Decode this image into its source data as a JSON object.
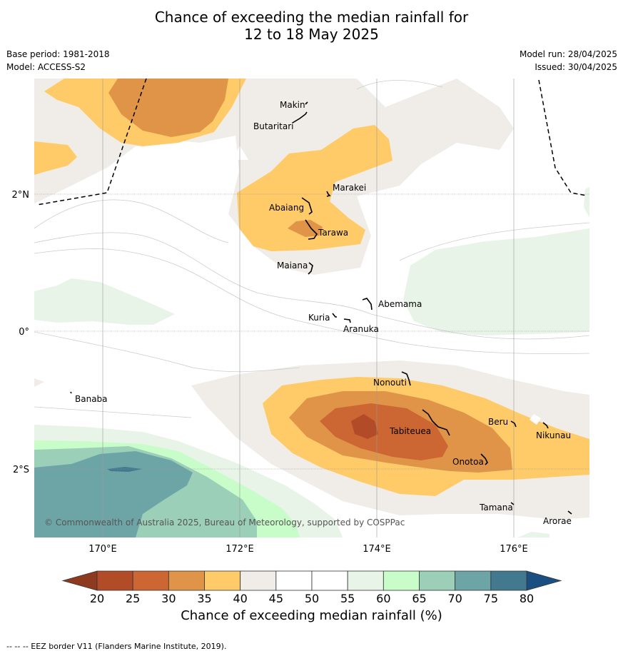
{
  "title_line1": "Chance of exceeding the median rainfall for",
  "title_line2": "12 to 18 May 2025",
  "meta_left": {
    "base_period": "Base period: 1981-2018",
    "model": "Model: ACCESS-S2"
  },
  "meta_right": {
    "model_run": "Model run: 28/04/2025",
    "issued": "Issued: 30/04/2025"
  },
  "axes": {
    "lon_labels": [
      "170°E",
      "172°E",
      "174°E",
      "176°E"
    ],
    "lat_labels": [
      "2°N",
      "0°",
      "2°S"
    ]
  },
  "places": {
    "makin": "Makin",
    "butaritari": "Butaritari",
    "marakei": "Marakei",
    "abaiang": "Abaiang",
    "tarawa": "Tarawa",
    "maiana": "Maiana",
    "abemama": "Abemama",
    "kuria": "Kuria",
    "aranuka": "Aranuka",
    "banaba": "Banaba",
    "nonouti": "Nonouti",
    "beru": "Beru",
    "nikunau": "Nikunau",
    "tabiteuea": "Tabiteuea",
    "onotoa": "Onotoa",
    "tamana": "Tamana",
    "arorae": "Arorae"
  },
  "copyright": "© Commonwealth of Australia 2025, Bureau of Meteorology, supported by COSPPac",
  "colorbar": {
    "ticks": [
      "20",
      "25",
      "30",
      "35",
      "40",
      "45",
      "50",
      "55",
      "60",
      "65",
      "70",
      "75",
      "80"
    ],
    "colors": [
      "#b24b27",
      "#cc6633",
      "#e09448",
      "#fecb68",
      "#f0ede8",
      "#ffffff",
      "#ffffff",
      "#e8f4e8",
      "#c8fcc8",
      "#9ccfb7",
      "#6da5a7",
      "#43798e"
    ],
    "low_arrow_color": "#8d3a1e",
    "high_arrow_color": "#1a4f82",
    "label": "Chance of exceeding median rainfall (%)"
  },
  "footer": "--  --  -- EEZ border V11 (Flanders Marine Institute, 2019)."
}
